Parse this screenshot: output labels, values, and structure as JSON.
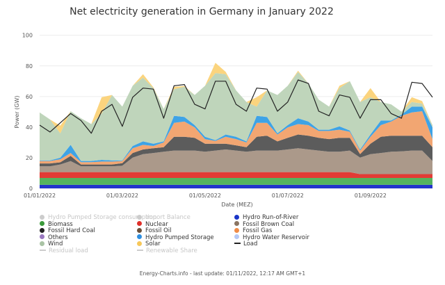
{
  "chart_data": {
    "type": "area",
    "stacked": true,
    "title": "Net electricity generation in Germany in January 2022",
    "xlabel": "Date (MEZ)",
    "ylabel": "Power (GW)",
    "ylim": [
      0,
      100
    ],
    "yticks": [
      0,
      20,
      40,
      60,
      80,
      100
    ],
    "xlim": [
      "2022-01-01 00:00",
      "2022-01-10 12:00"
    ],
    "xticks": [
      "01/01/2022",
      "01/03/2022",
      "01/05/2022",
      "01/07/2022",
      "01/09/2022"
    ],
    "xtick_dates": [
      "2022-01-01",
      "2022-01-03",
      "2022-01-05",
      "2022-01-07",
      "2022-01-09"
    ],
    "grid": true,
    "legend_position": "bottom",
    "x": [
      "2022-01-01 00:00",
      "2022-01-01 06:00",
      "2022-01-01 12:00",
      "2022-01-01 18:00",
      "2022-01-02 00:00",
      "2022-01-02 06:00",
      "2022-01-02 12:00",
      "2022-01-02 18:00",
      "2022-01-03 00:00",
      "2022-01-03 06:00",
      "2022-01-03 12:00",
      "2022-01-03 18:00",
      "2022-01-04 00:00",
      "2022-01-04 06:00",
      "2022-01-04 12:00",
      "2022-01-04 18:00",
      "2022-01-05 00:00",
      "2022-01-05 06:00",
      "2022-01-05 12:00",
      "2022-01-05 18:00",
      "2022-01-06 00:00",
      "2022-01-06 06:00",
      "2022-01-06 12:00",
      "2022-01-06 18:00",
      "2022-01-07 00:00",
      "2022-01-07 06:00",
      "2022-01-07 12:00",
      "2022-01-07 18:00",
      "2022-01-08 00:00",
      "2022-01-08 06:00",
      "2022-01-08 12:00",
      "2022-01-08 18:00",
      "2022-01-09 00:00",
      "2022-01-09 06:00",
      "2022-01-09 12:00",
      "2022-01-09 18:00",
      "2022-01-10 00:00",
      "2022-01-10 06:00",
      "2022-01-10 12:00"
    ],
    "series": [
      {
        "name": "Hydro Run-of-River",
        "color": "#2233cc",
        "values": [
          2.3,
          2.3,
          2.3,
          2.3,
          2.3,
          2.3,
          2.3,
          2.3,
          2.3,
          2.3,
          2.3,
          2.3,
          2.3,
          2.3,
          2.3,
          2.3,
          2.3,
          2.3,
          2.3,
          2.3,
          2.3,
          2.3,
          2.3,
          2.3,
          2.3,
          2.3,
          2.3,
          2.3,
          2.3,
          2.3,
          2.3,
          2.3,
          2.3,
          2.3,
          2.3,
          2.3,
          2.3,
          2.3,
          2.3
        ]
      },
      {
        "name": "Biomass",
        "color": "#55b35f",
        "values": [
          4.5,
          4.5,
          4.5,
          4.5,
          4.5,
          4.5,
          4.5,
          4.5,
          4.5,
          4.5,
          4.5,
          4.5,
          4.5,
          4.5,
          4.5,
          4.5,
          4.5,
          4.5,
          4.5,
          4.5,
          4.5,
          4.5,
          4.5,
          4.5,
          4.5,
          4.5,
          4.5,
          4.5,
          4.5,
          4.5,
          4.5,
          4.5,
          4.5,
          4.5,
          4.5,
          4.5,
          4.5,
          4.5,
          4.5
        ]
      },
      {
        "name": "Nuclear",
        "color": "#e23b35",
        "values": [
          3.8,
          3.8,
          3.8,
          3.8,
          3.8,
          3.8,
          3.8,
          3.8,
          3.8,
          3.8,
          3.8,
          3.8,
          3.8,
          3.8,
          3.8,
          3.8,
          3.8,
          3.8,
          3.8,
          3.8,
          3.8,
          3.8,
          3.8,
          3.8,
          3.8,
          3.8,
          3.8,
          3.8,
          3.8,
          3.8,
          3.8,
          2.5,
          2.5,
          2.5,
          2.5,
          2.5,
          2.5,
          2.5,
          2.5
        ]
      },
      {
        "name": "Fossil Brown Coal",
        "color": "#ab998a",
        "values": [
          3.8,
          3.8,
          5.0,
          7.2,
          3.8,
          3.8,
          3.8,
          3.8,
          4.2,
          9.5,
          11.8,
          12.5,
          13.3,
          14.1,
          14.1,
          14.1,
          13.3,
          14.1,
          14.8,
          14.1,
          13.3,
          14.1,
          14.1,
          14.1,
          14.8,
          15.6,
          14.8,
          14.1,
          13.3,
          13.3,
          14.1,
          10.8,
          13.1,
          13.8,
          14.6,
          14.9,
          15.4,
          15.4,
          8.6
        ]
      },
      {
        "name": "Fossil Hard Coal",
        "color": "#5c5c5c",
        "values": [
          1.9,
          1.9,
          1.4,
          3.4,
          1.2,
          1.2,
          1.2,
          1.2,
          1.7,
          3.0,
          3.0,
          3.1,
          3.0,
          9.0,
          9.0,
          8.3,
          5.3,
          4.5,
          3.8,
          3.4,
          3.0,
          9.0,
          9.7,
          6.0,
          7.6,
          9.0,
          9.0,
          8.3,
          8.3,
          9.1,
          8.3,
          2.3,
          6.8,
          10.6,
          10.5,
          10.2,
          9.7,
          9.7,
          9.0
        ]
      },
      {
        "name": "Fossil Gas",
        "color": "#f2a672",
        "values": [
          1.6,
          1.6,
          2.0,
          1.9,
          1.5,
          1.5,
          1.9,
          1.9,
          1.4,
          3.1,
          3.0,
          1.5,
          3.1,
          9.1,
          9.9,
          6.8,
          3.0,
          1.8,
          4.5,
          4.1,
          3.1,
          9.1,
          8.4,
          4.5,
          6.8,
          6.8,
          6.9,
          4.5,
          5.3,
          5.3,
          4.0,
          2.3,
          4.5,
          7.6,
          9.2,
          13.0,
          15.2,
          16.0,
          5.3
        ]
      },
      {
        "name": "Hydro Pumped Storage",
        "color": "#3ea3e6",
        "values": [
          0.4,
          0.4,
          1.0,
          5.3,
          0.8,
          0.8,
          1.1,
          0.8,
          0.4,
          1.5,
          2.3,
          1.5,
          0.7,
          4.6,
          3.0,
          1.5,
          1.5,
          0.5,
          1.5,
          1.5,
          0.7,
          4.6,
          3.8,
          0.8,
          1.5,
          3.8,
          2.3,
          0.8,
          0.8,
          2.2,
          0.8,
          0.7,
          1.5,
          3.0,
          0.7,
          0.7,
          3.8,
          3.0,
          7.6
        ]
      },
      {
        "name": "Wind",
        "color": "#bfd5bb",
        "values": [
          31.3,
          26.7,
          16.0,
          22.0,
          27.9,
          24.1,
          30.3,
          42.7,
          35.1,
          39.3,
          41.6,
          36.3,
          21.2,
          17.4,
          19.7,
          19.7,
          33.3,
          43.8,
          39.4,
          30.3,
          25.7,
          6.0,
          17.4,
          25.0,
          25.7,
          30.2,
          24.9,
          19.6,
          15.1,
          25.0,
          32.2,
          31.0,
          24.3,
          12.1,
          10.6,
          2.0,
          3.0,
          2.0,
          1.5
        ]
      },
      {
        "name": "Solar",
        "color": "#fbd47e",
        "values": [
          0,
          0,
          5.0,
          0,
          0,
          0,
          10.6,
          0,
          0,
          0,
          2.3,
          0.5,
          0,
          1.5,
          0.5,
          0,
          0,
          6.7,
          1.5,
          0,
          0,
          6.1,
          0,
          0,
          0,
          0.8,
          0,
          0,
          0,
          1.5,
          0,
          0,
          6.0,
          0,
          0,
          0,
          3.1,
          1.6,
          0
        ]
      }
    ],
    "line_series": [
      {
        "name": "Load",
        "color": "#222222",
        "values": [
          41.3,
          36.8,
          42.8,
          48.9,
          44.3,
          36.0,
          50.4,
          54.9,
          40.5,
          59.5,
          65.5,
          64.8,
          45.8,
          67.0,
          67.8,
          54.9,
          51.9,
          70.0,
          70.0,
          54.9,
          50.4,
          65.5,
          64.8,
          50.4,
          56.4,
          70.8,
          68.5,
          50.4,
          47.4,
          61.0,
          59.5,
          45.8,
          57.9,
          57.9,
          48.9,
          45.8,
          69.3,
          68.5,
          59.5
        ]
      }
    ],
    "legend": [
      {
        "label": "Hydro Pumped Storage consumption",
        "color": "#cccccc",
        "marker": "dot",
        "enabled": false
      },
      {
        "label": "Import Balance",
        "color": "#cccccc",
        "marker": "dot",
        "enabled": false
      },
      {
        "label": "Hydro Run-of-River",
        "color": "#1a35c8",
        "marker": "dot",
        "enabled": true
      },
      {
        "label": "Biomass",
        "color": "#3a9a3a",
        "marker": "dot",
        "enabled": true
      },
      {
        "label": "Nuclear",
        "color": "#e0302a",
        "marker": "dot",
        "enabled": true
      },
      {
        "label": "Fossil Brown Coal",
        "color": "#8b7562",
        "marker": "dot",
        "enabled": true
      },
      {
        "label": "Fossil Hard Coal",
        "color": "#222222",
        "marker": "dot",
        "enabled": true
      },
      {
        "label": "Fossil Oil",
        "color": "#6b5038",
        "marker": "dot",
        "enabled": true
      },
      {
        "label": "Fossil Gas",
        "color": "#f08c48",
        "marker": "dot",
        "enabled": true
      },
      {
        "label": "Others",
        "color": "#9a78c0",
        "marker": "dot",
        "enabled": true
      },
      {
        "label": "Hydro Pumped Storage",
        "color": "#2f8fe0",
        "marker": "dot",
        "enabled": true
      },
      {
        "label": "Hydro Water Reservoir",
        "color": "#b5c8f5",
        "marker": "dot",
        "enabled": true
      },
      {
        "label": "Wind",
        "color": "#a9c3a4",
        "marker": "dot",
        "enabled": true
      },
      {
        "label": "Solar",
        "color": "#f7c85a",
        "marker": "dot",
        "enabled": true
      },
      {
        "label": "Load",
        "color": "#222222",
        "marker": "line",
        "enabled": true
      },
      {
        "label": "Residual load",
        "color": "#cccccc",
        "marker": "line",
        "enabled": false
      },
      {
        "label": "Renewable Share",
        "color": "#cccccc",
        "marker": "line",
        "enabled": false
      }
    ]
  },
  "footer": "Energy-Charts.info - last update: 01/11/2022, 12:17 AM GMT+1"
}
